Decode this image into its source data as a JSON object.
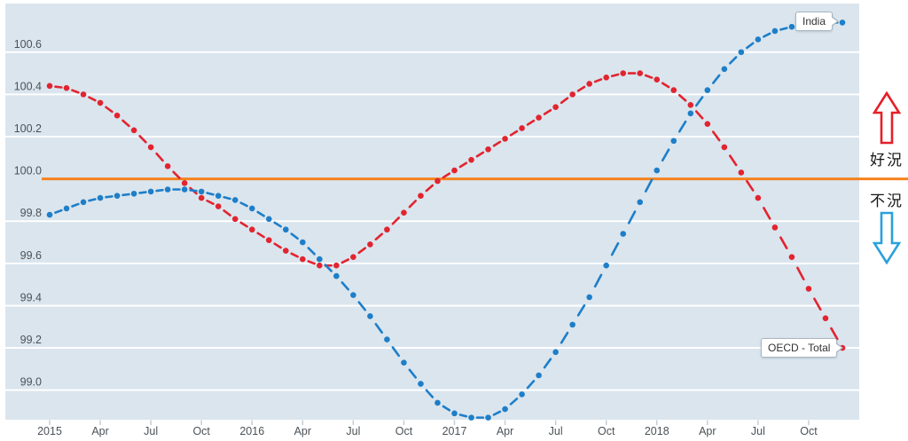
{
  "labels": {
    "india_callout": "India",
    "oecd_callout": "OECD - Total",
    "good_times": "好況",
    "recession": "不況"
  },
  "colors": {
    "plot_background": "#dae5ee",
    "gridline": "#ffffff",
    "baseline_orange": "#f5821e",
    "india_blue": "#1e7ec8",
    "oecd_red": "#e2242f",
    "up_arrow_red": "#e51f28",
    "down_arrow_blue": "#2aa1dc",
    "axis_text": "#4b5257",
    "tick_mark": "#c3ced8"
  },
  "chart_data": {
    "type": "line",
    "title": "",
    "xlabel": "",
    "ylabel": "",
    "grid": "horizontal-only",
    "legend_position": "end-of-line-callouts",
    "ylim": [
      98.86,
      100.83
    ],
    "y_ticks": [
      99.0,
      99.2,
      99.4,
      99.6,
      99.8,
      100.0,
      100.2,
      100.4,
      100.6
    ],
    "baseline": {
      "value": 100.0,
      "color": "#f5821e",
      "meaning_above": "好況",
      "meaning_below": "不況"
    },
    "x_ticks": [
      {
        "label": "2015",
        "month": 0
      },
      {
        "label": "Apr",
        "month": 3
      },
      {
        "label": "Jul",
        "month": 6
      },
      {
        "label": "Oct",
        "month": 9
      },
      {
        "label": "2016",
        "month": 12
      },
      {
        "label": "Apr",
        "month": 15
      },
      {
        "label": "Jul",
        "month": 18
      },
      {
        "label": "Oct",
        "month": 21
      },
      {
        "label": "2017",
        "month": 24
      },
      {
        "label": "Apr",
        "month": 27
      },
      {
        "label": "Jul",
        "month": 30
      },
      {
        "label": "Oct",
        "month": 33
      },
      {
        "label": "2018",
        "month": 36
      },
      {
        "label": "Apr",
        "month": 39
      },
      {
        "label": "Jul",
        "month": 42
      },
      {
        "label": "Oct",
        "month": 45
      }
    ],
    "x_months": [
      "2015-01",
      "2015-02",
      "2015-03",
      "2015-04",
      "2015-05",
      "2015-06",
      "2015-07",
      "2015-08",
      "2015-09",
      "2015-10",
      "2015-11",
      "2015-12",
      "2016-01",
      "2016-02",
      "2016-03",
      "2016-04",
      "2016-05",
      "2016-06",
      "2016-07",
      "2016-08",
      "2016-09",
      "2016-10",
      "2016-11",
      "2016-12",
      "2017-01",
      "2017-02",
      "2017-03",
      "2017-04",
      "2017-05",
      "2017-06",
      "2017-07",
      "2017-08",
      "2017-09",
      "2017-10",
      "2017-11",
      "2017-12",
      "2018-01",
      "2018-02",
      "2018-03",
      "2018-04",
      "2018-05",
      "2018-06",
      "2018-07",
      "2018-08",
      "2018-09",
      "2018-10",
      "2018-11",
      "2018-12"
    ],
    "series": [
      {
        "name": "OECD - Total",
        "color": "#e2242f",
        "values": [
          100.44,
          100.43,
          100.4,
          100.36,
          100.3,
          100.23,
          100.15,
          100.06,
          99.98,
          99.91,
          99.87,
          99.81,
          99.76,
          99.71,
          99.66,
          99.62,
          99.59,
          99.59,
          99.63,
          99.69,
          99.76,
          99.84,
          99.92,
          99.99,
          100.04,
          100.09,
          100.14,
          100.19,
          100.24,
          100.29,
          100.34,
          100.4,
          100.45,
          100.48,
          100.5,
          100.5,
          100.47,
          100.42,
          100.35,
          100.26,
          100.15,
          100.03,
          99.91,
          99.77,
          99.63,
          99.48,
          99.34,
          99.2
        ]
      },
      {
        "name": "India",
        "color": "#1e7ec8",
        "values": [
          99.83,
          99.86,
          99.89,
          99.91,
          99.92,
          99.93,
          99.94,
          99.95,
          99.95,
          99.94,
          99.92,
          99.9,
          99.86,
          99.81,
          99.76,
          99.7,
          99.62,
          99.54,
          99.45,
          99.35,
          99.24,
          99.13,
          99.03,
          98.94,
          98.89,
          98.87,
          98.87,
          98.91,
          98.98,
          99.07,
          99.18,
          99.31,
          99.44,
          99.59,
          99.74,
          99.89,
          100.04,
          100.18,
          100.31,
          100.42,
          100.52,
          100.6,
          100.66,
          100.7,
          100.72,
          100.73,
          100.74,
          100.74
        ]
      }
    ]
  }
}
